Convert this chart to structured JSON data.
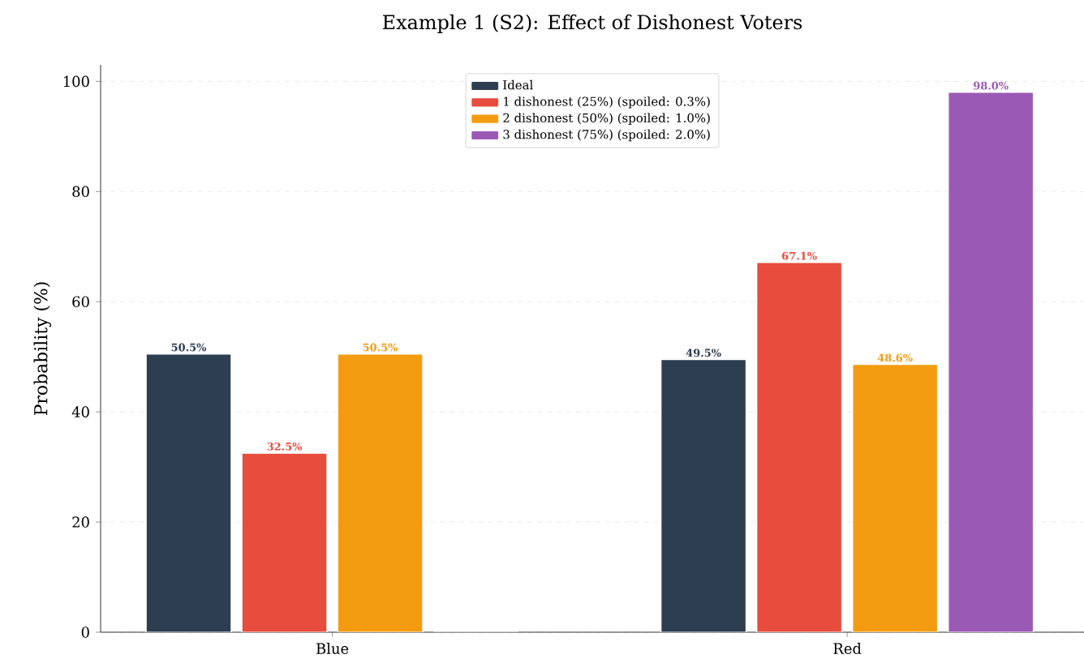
{
  "chart_data": {
    "type": "bar",
    "title": "Example 1 (S2): Effect of Dishonest Voters",
    "ylabel": "Probability (%)",
    "categories": [
      "Blue",
      "Red"
    ],
    "series": [
      {
        "name": "Ideal",
        "color": "#2c3e50",
        "values": [
          50.5,
          49.5
        ],
        "value_labels": [
          "50.5%",
          "49.5%"
        ]
      },
      {
        "name": "1 dishonest (25%) (spoiled: 0.3%)",
        "color": "#e74c3c",
        "values": [
          32.5,
          67.1
        ],
        "value_labels": [
          "32.5%",
          "67.1%"
        ]
      },
      {
        "name": "2 dishonest (50%) (spoiled: 1.0%)",
        "color": "#f39c12",
        "values": [
          50.5,
          48.6
        ],
        "value_labels": [
          "50.5%",
          "48.6%"
        ]
      },
      {
        "name": "3 dishonest (75%) (spoiled: 2.0%)",
        "color": "#9b59b6",
        "values": [
          0,
          98.0
        ],
        "value_labels": [
          null,
          "98.0%"
        ]
      }
    ],
    "ylim": [
      0,
      103
    ],
    "yticks": [
      0,
      20,
      40,
      60,
      80,
      100
    ],
    "grid": "y",
    "legend": "top"
  }
}
